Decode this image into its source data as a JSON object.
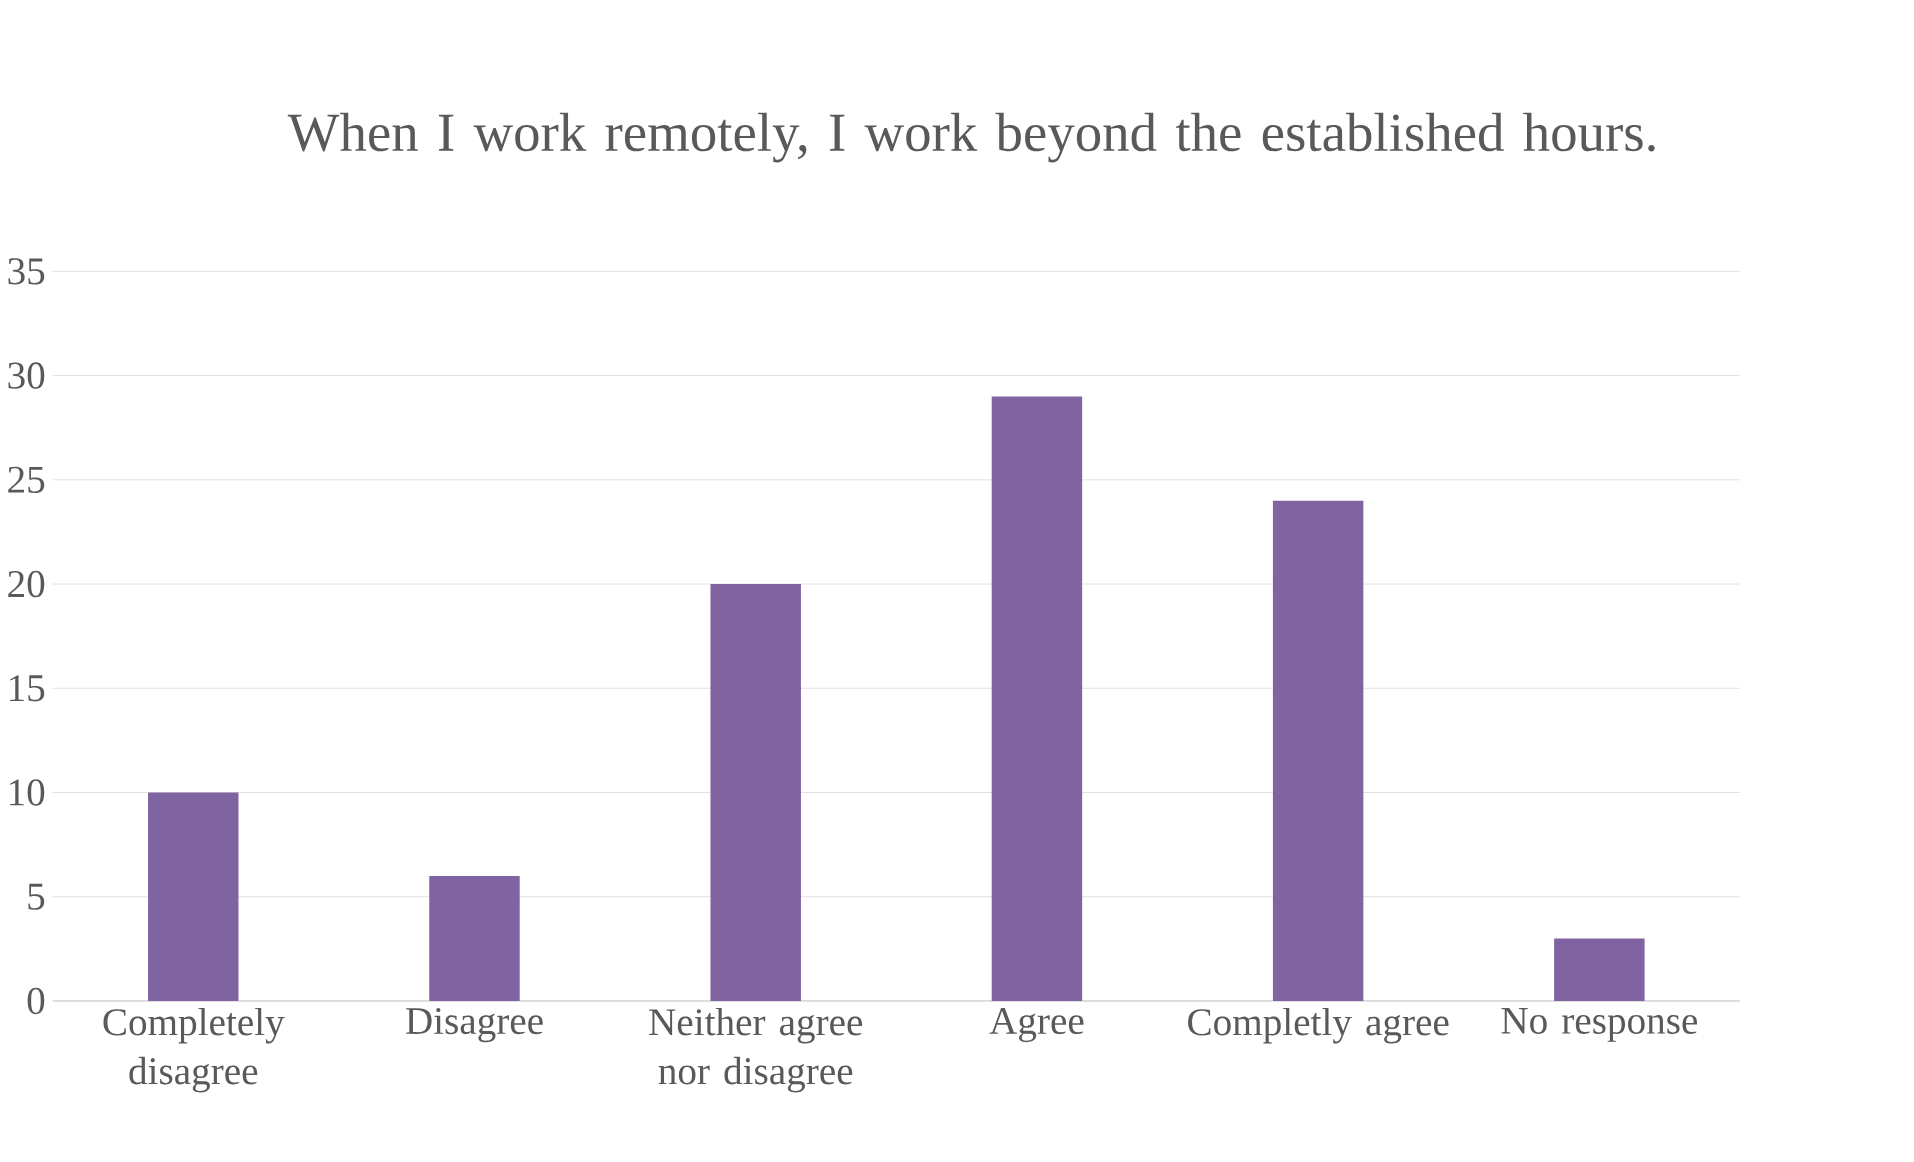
{
  "chart_data": {
    "type": "bar",
    "title": "When I work remotely, I work beyond the established hours.",
    "categories": [
      "Completely disagree",
      "Disagree",
      "Neither agree nor disagree",
      "Agree",
      "Completly agree",
      "No response"
    ],
    "values": [
      10,
      6,
      20,
      29,
      24,
      3
    ],
    "color": "#8064a2",
    "ylim": [
      0,
      35
    ],
    "yticks": [
      0,
      5,
      10,
      15,
      20,
      25,
      30,
      35
    ],
    "grid": "y"
  }
}
